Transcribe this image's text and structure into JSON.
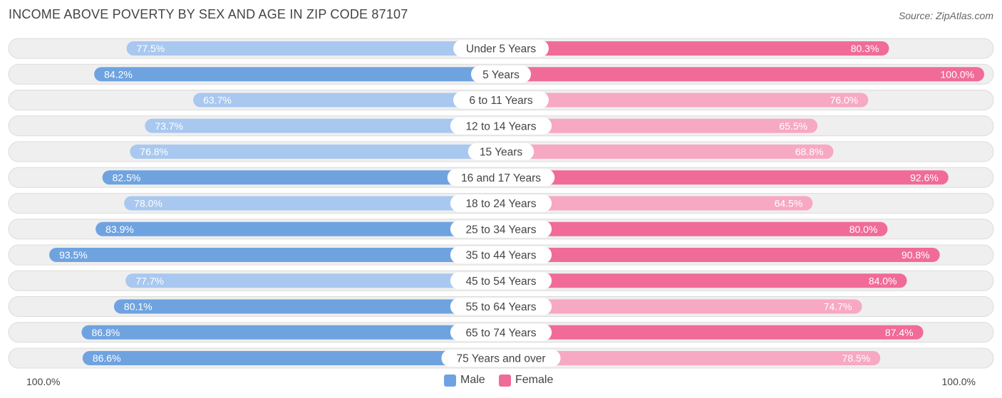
{
  "header": {
    "title": "INCOME ABOVE POVERTY BY SEX AND AGE IN ZIP CODE 87107",
    "source": "Source: ZipAtlas.com"
  },
  "colors": {
    "male": "#6fa3e0",
    "male_light": "#a9c8ef",
    "female": "#f06b98",
    "female_light": "#f7a8c2",
    "track": "#efefef",
    "track_border": "#dcdcdc"
  },
  "legend": {
    "male_label": "Male",
    "female_label": "Female"
  },
  "axis": {
    "left_label": "100.0%",
    "right_label": "100.0%"
  },
  "chart_data": {
    "type": "bar",
    "orientation": "horizontal-diverging",
    "title": "INCOME ABOVE POVERTY BY SEX AND AGE IN ZIP CODE 87107",
    "categories": [
      "Under 5 Years",
      "5 Years",
      "6 to 11 Years",
      "12 to 14 Years",
      "15 Years",
      "16 and 17 Years",
      "18 to 24 Years",
      "25 to 34 Years",
      "35 to 44 Years",
      "45 to 54 Years",
      "55 to 64 Years",
      "65 to 74 Years",
      "75 Years and over"
    ],
    "series": [
      {
        "name": "Male",
        "values": [
          77.5,
          84.2,
          63.7,
          73.7,
          76.8,
          82.5,
          78.0,
          83.9,
          93.5,
          77.7,
          80.1,
          86.8,
          86.6
        ],
        "labels": [
          "77.5%",
          "84.2%",
          "63.7%",
          "73.7%",
          "76.8%",
          "82.5%",
          "78.0%",
          "83.9%",
          "93.5%",
          "77.7%",
          "80.1%",
          "86.8%",
          "86.6%"
        ]
      },
      {
        "name": "Female",
        "values": [
          80.3,
          100.0,
          76.0,
          65.5,
          68.8,
          92.6,
          64.5,
          80.0,
          90.8,
          84.0,
          74.7,
          87.4,
          78.5
        ],
        "labels": [
          "80.3%",
          "100.0%",
          "76.0%",
          "65.5%",
          "68.8%",
          "92.6%",
          "64.5%",
          "80.0%",
          "90.8%",
          "84.0%",
          "74.7%",
          "87.4%",
          "78.5%"
        ]
      }
    ],
    "xlim": [
      0,
      100
    ],
    "legend_position": "bottom-center"
  }
}
